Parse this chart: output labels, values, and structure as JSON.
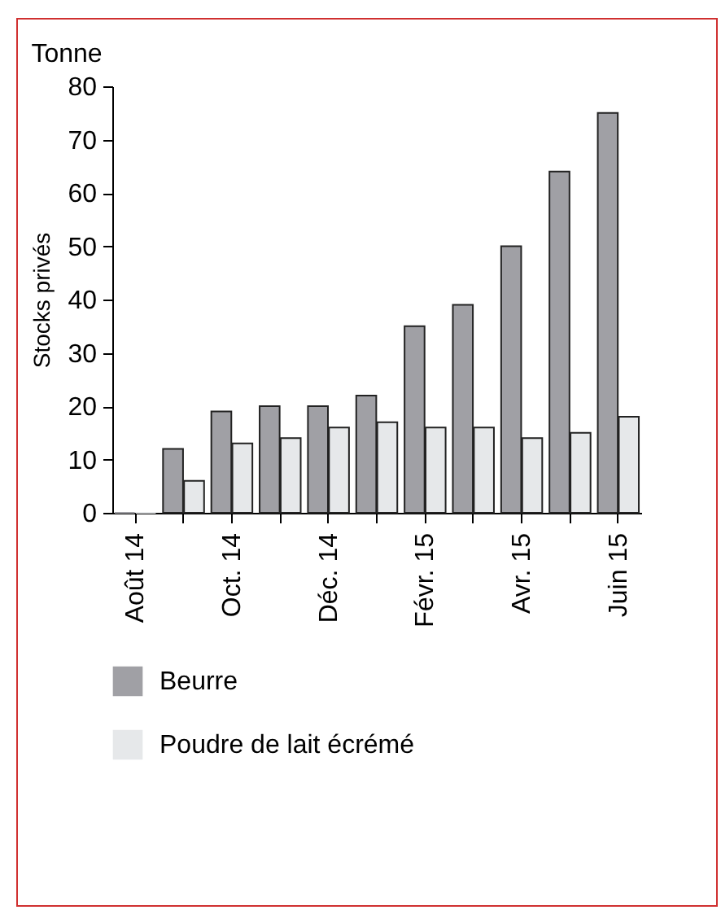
{
  "chart_data": {
    "type": "bar",
    "ylabel": "Stocks privés",
    "annotations": [
      "Tonne"
    ],
    "categories": [
      "Août 14",
      null,
      "Oct. 14",
      null,
      "Déc. 14",
      null,
      "Févr. 15",
      null,
      "Avr. 15",
      null,
      "Juin 15"
    ],
    "series": [
      {
        "name": "Beurre",
        "color": "#a0a0a5",
        "values": [
          0,
          12,
          19,
          20,
          20,
          22,
          35,
          39,
          50,
          64,
          75
        ]
      },
      {
        "name": "Poudre de lait écrémé",
        "color": "#e6e8ea",
        "values": [
          0,
          6,
          13,
          14,
          16,
          17,
          16,
          16,
          14,
          15,
          18
        ]
      }
    ],
    "ylim": [
      0,
      80
    ],
    "yticks": [
      0,
      10,
      20,
      30,
      40,
      50,
      60,
      70,
      80
    ],
    "grid": false,
    "legend": "bottom"
  }
}
